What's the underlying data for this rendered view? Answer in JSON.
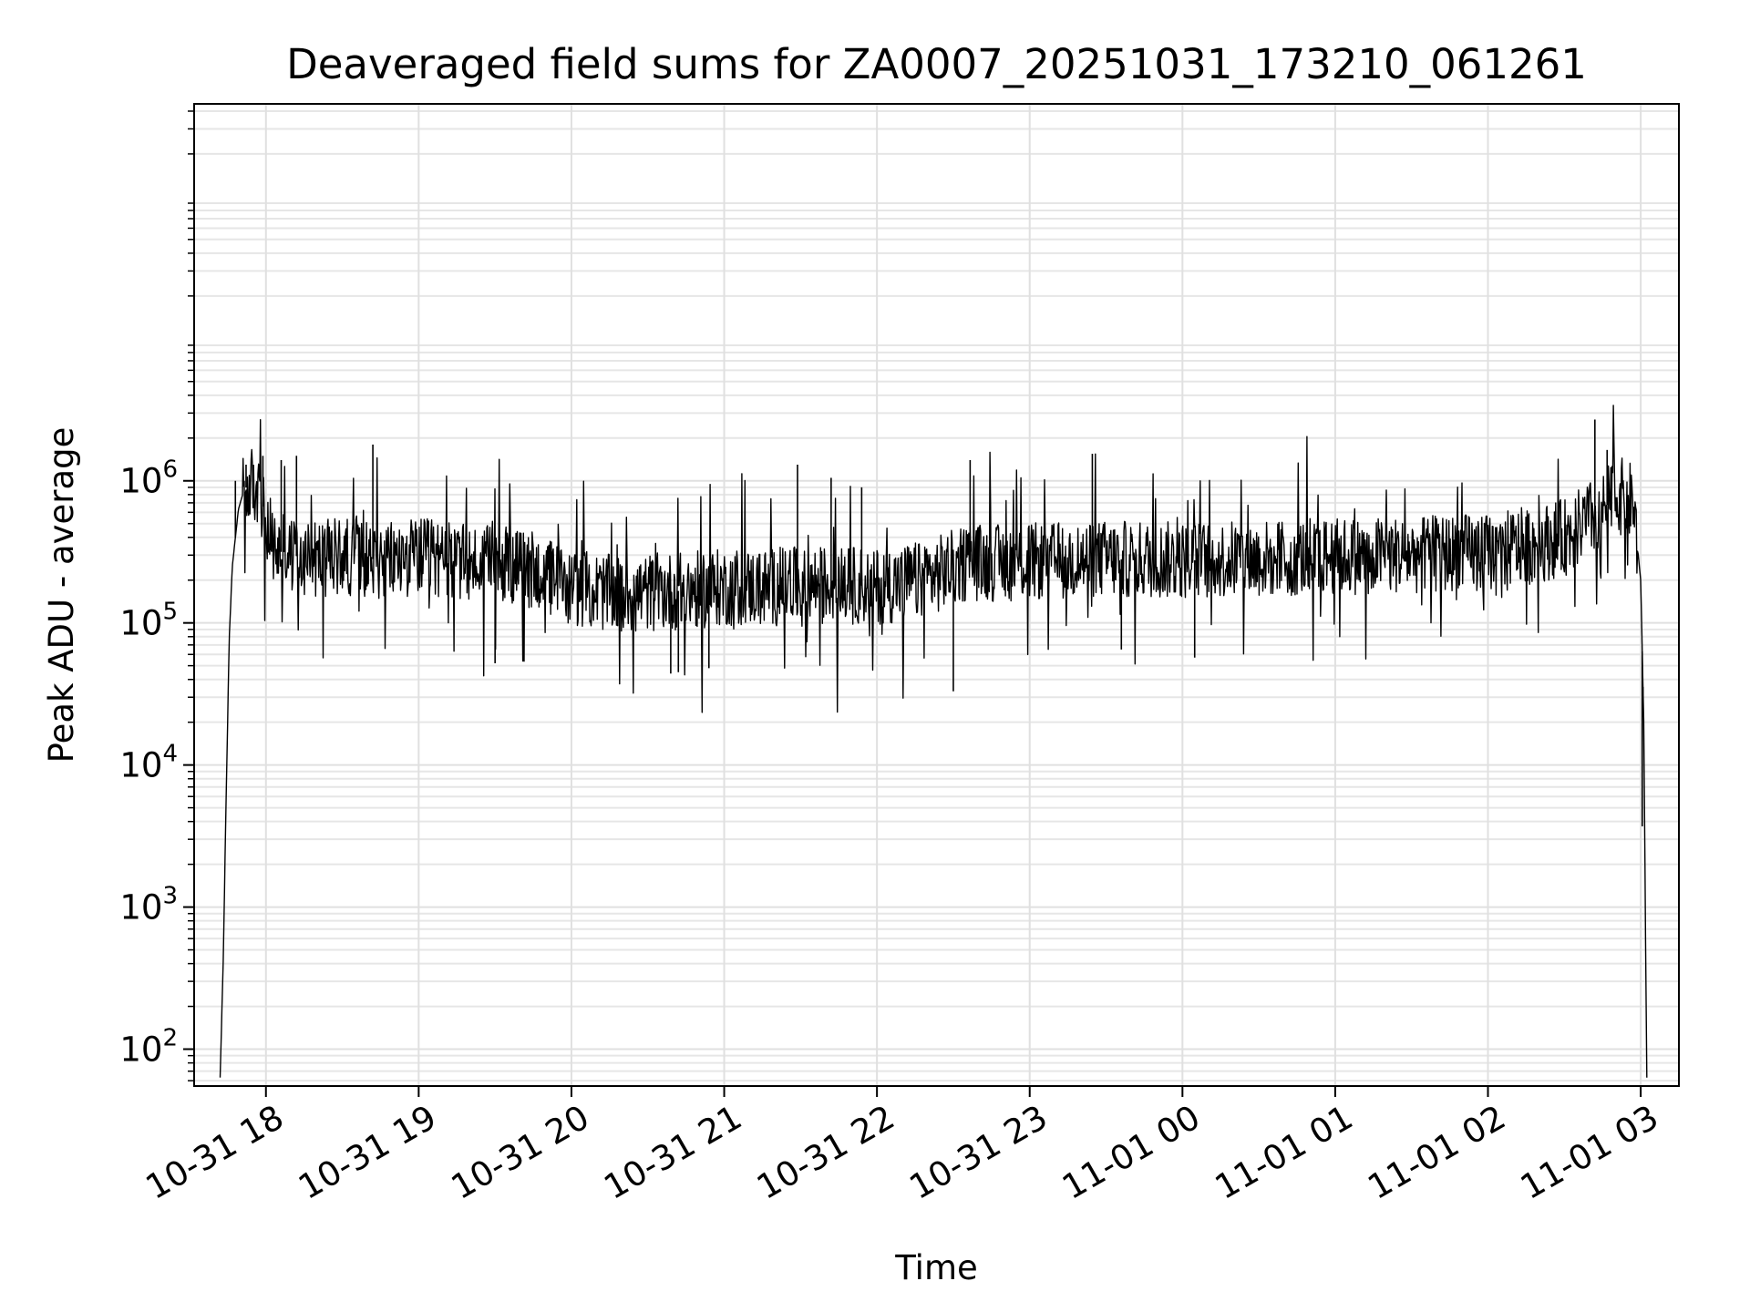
{
  "chart_data": {
    "type": "line",
    "title": "Deaveraged field sums for ZA0007_20251031_173210_061261",
    "xlabel": "Time",
    "ylabel": "Peak ADU - average",
    "yscale": "log",
    "xlim": [
      17.53,
      27.25
    ],
    "ylim": [
      55,
      450000000
    ],
    "xticks": [
      {
        "v": 18,
        "label": "10-31 18"
      },
      {
        "v": 19,
        "label": "10-31 19"
      },
      {
        "v": 20,
        "label": "10-31 20"
      },
      {
        "v": 21,
        "label": "10-31 21"
      },
      {
        "v": 22,
        "label": "10-31 22"
      },
      {
        "v": 23,
        "label": "10-31 23"
      },
      {
        "v": 24,
        "label": "11-01 00"
      },
      {
        "v": 25,
        "label": "11-01 01"
      },
      {
        "v": 26,
        "label": "11-01 02"
      },
      {
        "v": 27,
        "label": "11-01 03"
      }
    ],
    "yticks": [
      {
        "exp": 2,
        "base": "10",
        "sup": "2"
      },
      {
        "exp": 3,
        "base": "10",
        "sup": "3"
      },
      {
        "exp": 4,
        "base": "10",
        "sup": "4"
      },
      {
        "exp": 5,
        "base": "10",
        "sup": "5"
      },
      {
        "exp": 6,
        "base": "10",
        "sup": "6"
      }
    ],
    "grid": true,
    "series": [
      {
        "name": "field sums",
        "color": "#000000",
        "baseline": [
          [
            17.7,
            1.8
          ],
          [
            17.72,
            2.6
          ],
          [
            17.74,
            3.8
          ],
          [
            17.76,
            4.9
          ],
          [
            17.78,
            5.4
          ],
          [
            17.82,
            5.8
          ],
          [
            17.86,
            5.95
          ],
          [
            17.92,
            5.97
          ],
          [
            17.98,
            5.82
          ],
          [
            18.05,
            5.52
          ],
          [
            18.15,
            5.48
          ],
          [
            18.3,
            5.45
          ],
          [
            18.5,
            5.47
          ],
          [
            18.8,
            5.44
          ],
          [
            19.0,
            5.47
          ],
          [
            19.3,
            5.42
          ],
          [
            19.6,
            5.4
          ],
          [
            19.8,
            5.35
          ],
          [
            20.0,
            5.25
          ],
          [
            20.3,
            5.2
          ],
          [
            20.6,
            5.22
          ],
          [
            20.8,
            5.23
          ],
          [
            21.0,
            5.25
          ],
          [
            21.3,
            5.25
          ],
          [
            21.6,
            5.27
          ],
          [
            22.0,
            5.26
          ],
          [
            22.3,
            5.3
          ],
          [
            22.6,
            5.43
          ],
          [
            22.8,
            5.42
          ],
          [
            23.0,
            5.43
          ],
          [
            23.5,
            5.45
          ],
          [
            24.0,
            5.44
          ],
          [
            24.5,
            5.45
          ],
          [
            25.0,
            5.47
          ],
          [
            25.5,
            5.48
          ],
          [
            26.0,
            5.5
          ],
          [
            26.3,
            5.55
          ],
          [
            26.5,
            5.6
          ],
          [
            26.7,
            5.75
          ],
          [
            26.85,
            5.9
          ],
          [
            26.95,
            5.85
          ],
          [
            27.0,
            5.3
          ],
          [
            27.02,
            4.3
          ],
          [
            27.03,
            3.0
          ],
          [
            27.04,
            1.8
          ]
        ],
        "spikes": [
          {
            "x": 17.8,
            "y": 1000000
          },
          {
            "x": 17.87,
            "y": 1300000
          },
          {
            "x": 17.98,
            "y": 1500000
          },
          {
            "x": 18.1,
            "y": 1400000
          },
          {
            "x": 18.2,
            "y": 1500000
          },
          {
            "x": 18.7,
            "y": 1800000
          },
          {
            "x": 22.61,
            "y": 1400000
          },
          {
            "x": 23.41,
            "y": 1550000
          },
          {
            "x": 21.48,
            "y": 1300000
          },
          {
            "x": 21.7,
            "y": 1050000
          },
          {
            "x": 21.9,
            "y": 900000
          },
          {
            "x": 26.7,
            "y": 2700000
          },
          {
            "x": 26.78,
            "y": 1650000
          },
          {
            "x": 22.5,
            "y": 33000
          },
          {
            "x": 19.5,
            "y": 52000
          },
          {
            "x": 20.7,
            "y": 45000
          },
          {
            "x": 20.65,
            "y": 44000
          },
          {
            "x": 20.9,
            "y": 48000
          },
          {
            "x": 23.6,
            "y": 65000
          },
          {
            "x": 24.08,
            "y": 57000
          },
          {
            "x": 27.015,
            "y": 22000
          },
          {
            "x": 27.01,
            "y": 3700
          }
        ]
      }
    ]
  }
}
